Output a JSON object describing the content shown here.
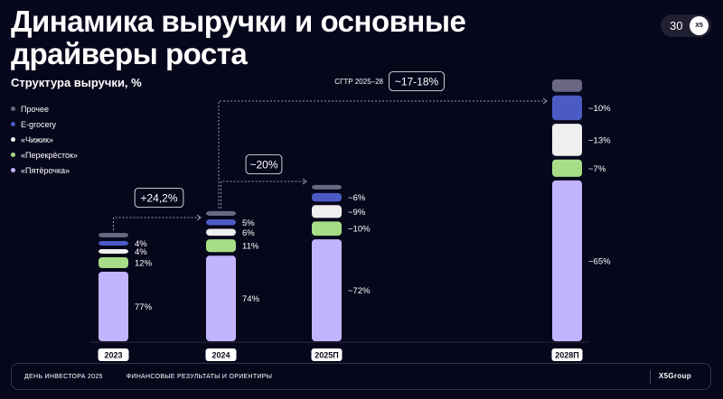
{
  "title": "Динамика выручки и основные драйверы роста",
  "page_number": "30",
  "logo_text": "X5",
  "footer": {
    "left": "ДЕНЬ ИНВЕСТОРА 2025",
    "right": "ФИНАНСОВЫЕ РЕЗУЛЬТАТЫ И ОРИЕНТИРЫ",
    "logo": "X5Group"
  },
  "colors": {
    "background": "#07071c",
    "pyaterochka": "#c3b4ff",
    "perekrestok": "#a7dd86",
    "chizhik": "#efefef",
    "egrocery": "#4c5bc4",
    "other": "#696782"
  },
  "chart_data": {
    "type": "bar",
    "stacked": true,
    "title": "Структура выручки, %",
    "categories": [
      "2023",
      "2024",
      "2025П",
      "2028П"
    ],
    "series": [
      {
        "name": "«Пятёрочка»",
        "color": "#c3b4ff",
        "labels": [
          "77%",
          "74%",
          "~72%",
          "~65%"
        ]
      },
      {
        "name": "«Перекрёсток»",
        "color": "#a7dd86",
        "labels": [
          "12%",
          "11%",
          "~10%",
          "~7%"
        ]
      },
      {
        "name": "«Чижик»",
        "color": "#efefef",
        "labels": [
          "4%",
          "6%",
          "~9%",
          "~13%"
        ]
      },
      {
        "name": "E-grocery",
        "color": "#4c5bc4",
        "labels": [
          "4%",
          "5%",
          "~6%",
          "~10%"
        ]
      },
      {
        "name": "Прочее",
        "color": "#696782",
        "labels": [
          "",
          "",
          "",
          ""
        ]
      }
    ],
    "total_relative": [
      1.0,
      1.242,
      1.49,
      2.5
    ],
    "annotations": [
      {
        "from": "2023",
        "to": "2024",
        "text": "+24,2%"
      },
      {
        "from": "2024",
        "to": "2025П",
        "text": "~20%"
      },
      {
        "from": "2024",
        "to": "2028П",
        "label": "СГТР 2025–28",
        "text": "~17-18%"
      }
    ],
    "legend_position": "left",
    "grid": false
  }
}
